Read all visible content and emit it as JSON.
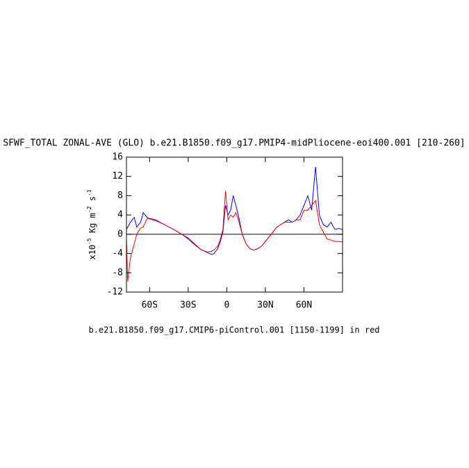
{
  "chart_data": {
    "type": "line",
    "title": "SFWF_TOTAL ZONAL-AVE (GLO) b.e21.B1850.f09_g17.PMIP4-midPliocene-eoi400.001 [210-260]",
    "ylabel": [
      "x10",
      "-5",
      " Kg m",
      "-2",
      " s",
      "-1"
    ],
    "caption": "b.e21.B1850.f09_g17.CMIP6-piControl.001 [1150-1199] in red",
    "x": [
      -78,
      -77,
      -75,
      -72,
      -70,
      -67,
      -65,
      -62,
      -60,
      -55,
      -50,
      -45,
      -40,
      -35,
      -30,
      -25,
      -20,
      -15,
      -12,
      -10,
      -7,
      -5,
      -3,
      -1,
      1,
      3,
      5,
      7,
      9,
      12,
      15,
      18,
      21,
      24,
      27,
      30,
      33,
      36,
      39,
      42,
      45,
      48,
      51,
      54,
      57,
      60,
      63,
      66,
      69,
      72,
      75,
      78,
      81,
      84,
      87,
      90
    ],
    "series": [
      {
        "color": "#0000ff",
        "values": [
          1,
          1.5,
          2.5,
          3.5,
          1.5,
          2.5,
          4.5,
          3.5,
          3.2,
          2.8,
          2.2,
          1.5,
          0.8,
          0,
          -0.8,
          -2,
          -3.2,
          -3.8,
          -4.2,
          -4,
          -3,
          -1.5,
          0.5,
          6,
          4,
          5,
          8,
          6,
          4,
          0,
          -2,
          -3,
          -3.3,
          -3,
          -2.5,
          -1.5,
          -0.5,
          0.5,
          1.5,
          2,
          2.5,
          3,
          2.5,
          3,
          4,
          6,
          8,
          5,
          14,
          4,
          2,
          1.5,
          2.5,
          1,
          1.2,
          1
        ]
      },
      {
        "color": "#ff0000",
        "values": [
          -1,
          -9.8,
          -5,
          -2,
          0,
          1.3,
          1.5,
          3.2,
          3.3,
          3,
          2.2,
          1.5,
          0.8,
          0,
          -1,
          -2.2,
          -3.2,
          -3.7,
          -3.5,
          -3.3,
          -2.5,
          -1,
          1,
          9,
          3,
          4,
          3.5,
          4.5,
          3,
          0,
          -2,
          -3,
          -3.3,
          -3,
          -2.5,
          -1.5,
          -0.5,
          0.5,
          1.5,
          2,
          2.5,
          2.5,
          2.5,
          3,
          3,
          5,
          5,
          6,
          7,
          2,
          0.5,
          -1,
          -1.2,
          -1.5,
          -1.5,
          -1.6
        ]
      }
    ],
    "xlim": [
      -78,
      90
    ],
    "ylim": [
      -12,
      16
    ],
    "xticks": [
      {
        "value": -60,
        "label": "60S"
      },
      {
        "value": -30,
        "label": "30S"
      },
      0,
      {
        "value": 30,
        "label": "30N"
      },
      {
        "value": 60,
        "label": "60N"
      }
    ],
    "yticks": [
      -12,
      -8,
      -4,
      0,
      4,
      8,
      12,
      16
    ],
    "ref_line": 0
  }
}
